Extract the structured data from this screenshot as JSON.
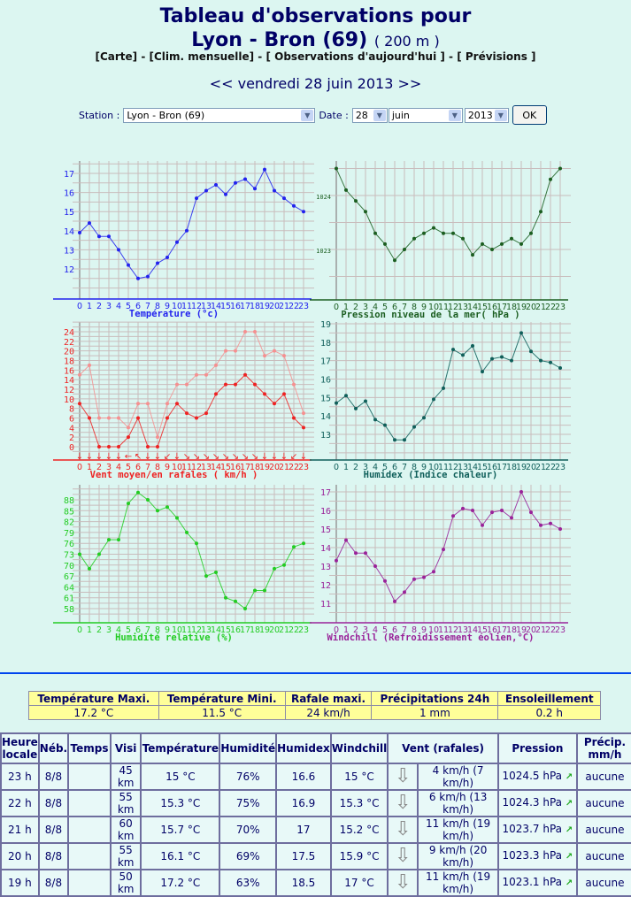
{
  "header": {
    "title_line1": "Tableau d'observations pour",
    "station_name": "Lyon - Bron (69)",
    "altitude": "( 200 m )",
    "links": [
      "[Carte]",
      "[Clim. mensuelle]",
      "[ Observations d'aujourd'hui ]",
      "[ Prévisions ]"
    ],
    "link_sep": " - ",
    "prev": "<<",
    "date": "vendredi 28 juin 2013",
    "next": ">>"
  },
  "form": {
    "station_label": "Station :",
    "station_value": "Lyon - Bron (69)",
    "date_label": "Date :",
    "day": "28",
    "month": "juin",
    "year": "2013",
    "ok": "OK"
  },
  "chart_data": [
    {
      "type": "line",
      "title": "Température (°c)",
      "color": "#2222ee",
      "x": [
        0,
        1,
        2,
        3,
        4,
        5,
        6,
        7,
        8,
        9,
        10,
        11,
        12,
        13,
        14,
        15,
        16,
        17,
        18,
        19,
        20,
        21,
        22,
        23
      ],
      "yticks": [
        12,
        13,
        14,
        15,
        16,
        17
      ],
      "series": [
        {
          "values": [
            13.9,
            14.4,
            13.7,
            13.7,
            13.0,
            12.2,
            11.5,
            11.6,
            12.3,
            12.6,
            13.4,
            14.0,
            15.7,
            16.1,
            16.4,
            15.9,
            16.5,
            16.7,
            16.2,
            17.2,
            16.1,
            15.7,
            15.3,
            15.0
          ]
        }
      ]
    },
    {
      "type": "line",
      "title": "Pression niveau de la mer( hPa )",
      "color": "#1b5e20",
      "x": [
        0,
        1,
        2,
        3,
        4,
        5,
        6,
        7,
        8,
        9,
        10,
        11,
        12,
        13,
        14,
        15,
        16,
        17,
        18,
        19,
        20,
        21,
        22,
        23
      ],
      "yticks": [
        1023,
        1024
      ],
      "series": [
        {
          "values": [
            1024.5,
            1024.1,
            1023.9,
            1023.7,
            1023.3,
            1023.1,
            1022.8,
            1023.0,
            1023.2,
            1023.3,
            1023.4,
            1023.3,
            1023.3,
            1023.2,
            1022.9,
            1023.1,
            1023.0,
            1023.1,
            1023.2,
            1023.1,
            1023.3,
            1023.7,
            1024.3,
            1024.5
          ]
        }
      ]
    },
    {
      "type": "line",
      "title": "Vent moyen/en rafales ( km/h )",
      "color": "#ee2222",
      "x": [
        0,
        1,
        2,
        3,
        4,
        5,
        6,
        7,
        8,
        9,
        10,
        11,
        12,
        13,
        14,
        15,
        16,
        17,
        18,
        19,
        20,
        21,
        22,
        23
      ],
      "yticks": [
        0,
        2,
        4,
        6,
        8,
        10,
        12,
        14,
        16,
        18,
        20,
        22,
        24
      ],
      "directions": [
        "↓",
        "↓",
        "↓",
        "↓",
        "↓",
        "←",
        "↖",
        "↓",
        "↓",
        "↙",
        "↓",
        "↘",
        "↘",
        "↘",
        "↘",
        "↘",
        "↘",
        "↘",
        "↘",
        "↓",
        "↓",
        "↓",
        "↙",
        "↓"
      ],
      "series": [
        {
          "values": [
            9,
            6,
            0,
            0,
            0,
            2,
            6,
            0,
            0,
            6,
            9,
            7,
            6,
            7,
            11,
            13,
            13,
            15,
            13,
            11,
            9,
            11,
            6,
            4
          ],
          "color": "#ee2222"
        },
        {
          "values": [
            15,
            17,
            6,
            6,
            6,
            4,
            9,
            9,
            2,
            9,
            13,
            13,
            15,
            15,
            17,
            20,
            20,
            24,
            24,
            19,
            20,
            19,
            13,
            7
          ],
          "color": "#f59090"
        }
      ]
    },
    {
      "type": "line",
      "title": "Humidex (Indice chaleur)",
      "color": "#0f5f5a",
      "x": [
        0,
        1,
        2,
        3,
        4,
        5,
        6,
        7,
        8,
        9,
        10,
        11,
        12,
        13,
        14,
        15,
        16,
        17,
        18,
        19,
        20,
        21,
        22,
        23
      ],
      "yticks": [
        13,
        14,
        15,
        16,
        17,
        18,
        19
      ],
      "series": [
        {
          "values": [
            14.7,
            15.1,
            14.4,
            14.8,
            13.8,
            13.5,
            12.7,
            12.7,
            13.4,
            13.9,
            14.9,
            15.5,
            17.6,
            17.3,
            17.8,
            16.4,
            17.1,
            17.2,
            17.0,
            18.5,
            17.5,
            17.0,
            16.9,
            16.6
          ]
        }
      ]
    },
    {
      "type": "line",
      "title": "Humidité relative (%)",
      "color": "#22cc22",
      "x": [
        0,
        1,
        2,
        3,
        4,
        5,
        6,
        7,
        8,
        9,
        10,
        11,
        12,
        13,
        14,
        15,
        16,
        17,
        18,
        19,
        20,
        21,
        22,
        23
      ],
      "yticks": [
        58,
        61,
        64,
        67,
        70,
        73,
        76,
        79,
        82,
        85,
        88
      ],
      "series": [
        {
          "values": [
            73,
            69,
            73,
            77,
            77,
            87,
            90,
            88,
            85,
            86,
            83,
            79,
            76,
            67,
            68,
            61,
            60,
            58,
            63,
            63,
            69,
            70,
            75,
            76
          ]
        }
      ]
    },
    {
      "type": "line",
      "title": "Windchill (Refroidissement éolien,°C)",
      "color": "#992299",
      "x": [
        0,
        1,
        2,
        3,
        4,
        5,
        6,
        7,
        8,
        9,
        10,
        11,
        12,
        13,
        14,
        15,
        16,
        17,
        18,
        19,
        20,
        21,
        22,
        23
      ],
      "yticks": [
        11,
        12,
        13,
        14,
        15,
        16,
        17
      ],
      "series": [
        {
          "values": [
            13.3,
            14.4,
            13.7,
            13.7,
            13.0,
            12.2,
            11.1,
            11.6,
            12.3,
            12.4,
            12.7,
            13.9,
            15.7,
            16.1,
            16.0,
            15.2,
            15.9,
            16.0,
            15.6,
            17.0,
            15.9,
            15.2,
            15.3,
            15.0
          ]
        }
      ]
    }
  ],
  "summary": {
    "headers": [
      "Température Maxi.",
      "Température Mini.",
      "Rafale maxi.",
      "Précipitations 24h",
      "Ensoleillement"
    ],
    "values": [
      "17.2 °C",
      "11.5 °C",
      "24 km/h",
      "1 mm",
      "0.2 h"
    ]
  },
  "observations": {
    "headers": [
      "Heure locale",
      "Néb.",
      "Temps",
      "Visi",
      "Température",
      "Humidité",
      "Humidex",
      "Windchill",
      "Vent (rafales)",
      "Pression",
      "Précip. mm/h"
    ],
    "rows": [
      {
        "hour": "23 h",
        "neb": "8/8",
        "temps": "",
        "visi": "45 km",
        "temp": "15 °C",
        "hum": "76%",
        "humidex": "16.6",
        "windchill": "15 °C",
        "wind_dir": "⇩",
        "wind": "4 km/h (7 km/h)",
        "pressure": "1024.5 hPa",
        "precip": "aucune"
      },
      {
        "hour": "22 h",
        "neb": "8/8",
        "temps": "",
        "visi": "55 km",
        "temp": "15.3 °C",
        "hum": "75%",
        "humidex": "16.9",
        "windchill": "15.3 °C",
        "wind_dir": "⇩",
        "wind": "6 km/h (13 km/h)",
        "pressure": "1024.3 hPa",
        "precip": "aucune"
      },
      {
        "hour": "21 h",
        "neb": "8/8",
        "temps": "",
        "visi": "60 km",
        "temp": "15.7 °C",
        "hum": "70%",
        "humidex": "17",
        "windchill": "15.2 °C",
        "wind_dir": "⇩",
        "wind": "11 km/h (19 km/h)",
        "pressure": "1023.7 hPa",
        "precip": "aucune"
      },
      {
        "hour": "20 h",
        "neb": "8/8",
        "temps": "",
        "visi": "55 km",
        "temp": "16.1 °C",
        "hum": "69%",
        "humidex": "17.5",
        "windchill": "15.9 °C",
        "wind_dir": "⇩",
        "wind": "9 km/h (20 km/h)",
        "pressure": "1023.3 hPa",
        "precip": "aucune"
      },
      {
        "hour": "19 h",
        "neb": "8/8",
        "temps": "",
        "visi": "50 km",
        "temp": "17.2 °C",
        "hum": "63%",
        "humidex": "18.5",
        "windchill": "17 °C",
        "wind_dir": "⇩",
        "wind": "11 km/h (19 km/h)",
        "pressure": "1023.1 hPa",
        "precip": "aucune"
      }
    ]
  }
}
